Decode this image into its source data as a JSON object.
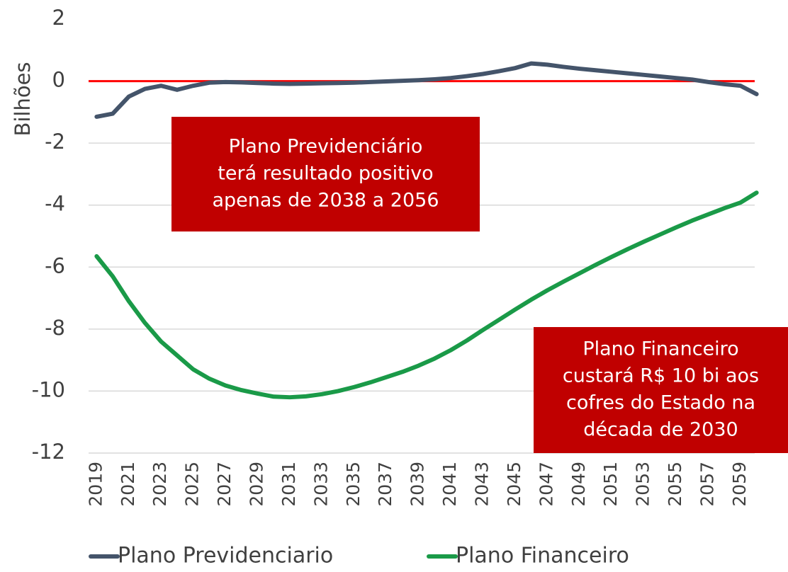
{
  "chart_data": {
    "type": "line",
    "y_label": "Bilhões",
    "x": [
      2019,
      2020,
      2021,
      2022,
      2023,
      2024,
      2025,
      2026,
      2027,
      2028,
      2029,
      2030,
      2031,
      2032,
      2033,
      2034,
      2035,
      2036,
      2037,
      2038,
      2039,
      2040,
      2041,
      2042,
      2043,
      2044,
      2045,
      2046,
      2047,
      2048,
      2049,
      2050,
      2051,
      2052,
      2053,
      2054,
      2055,
      2056,
      2057,
      2058,
      2059,
      2060
    ],
    "xlim": [
      2018.5,
      2060.5
    ],
    "xticks": [
      2019,
      2021,
      2023,
      2025,
      2027,
      2029,
      2031,
      2033,
      2035,
      2037,
      2039,
      2041,
      2043,
      2045,
      2047,
      2049,
      2051,
      2053,
      2055,
      2057,
      2059
    ],
    "ylim": [
      -12,
      2
    ],
    "yticks": [
      -12,
      -10,
      -8,
      -6,
      -4,
      -2,
      0,
      2
    ],
    "grid": true,
    "reference_line": {
      "value": 0,
      "color": "#ff0000"
    },
    "series": [
      {
        "name": "Plano Previdenciario",
        "color": "#44546a",
        "values": [
          -1.15,
          -1.05,
          -0.5,
          -0.25,
          -0.15,
          -0.28,
          -0.15,
          -0.05,
          -0.03,
          -0.04,
          -0.06,
          -0.08,
          -0.09,
          -0.08,
          -0.07,
          -0.06,
          -0.05,
          -0.03,
          -0.01,
          0.01,
          0.03,
          0.06,
          0.1,
          0.16,
          0.23,
          0.32,
          0.42,
          0.57,
          0.53,
          0.46,
          0.4,
          0.35,
          0.3,
          0.25,
          0.2,
          0.15,
          0.1,
          0.05,
          -0.03,
          -0.1,
          -0.15,
          -0.42
        ]
      },
      {
        "name": "Plano Financeiro",
        "color": "#1a9a48",
        "values": [
          -5.65,
          -6.3,
          -7.1,
          -7.8,
          -8.4,
          -8.85,
          -9.3,
          -9.6,
          -9.82,
          -9.97,
          -10.08,
          -10.18,
          -10.2,
          -10.17,
          -10.1,
          -10.0,
          -9.87,
          -9.72,
          -9.55,
          -9.38,
          -9.18,
          -8.95,
          -8.68,
          -8.37,
          -8.03,
          -7.7,
          -7.37,
          -7.05,
          -6.75,
          -6.47,
          -6.2,
          -5.93,
          -5.67,
          -5.42,
          -5.18,
          -4.95,
          -4.72,
          -4.5,
          -4.3,
          -4.1,
          -3.92,
          -3.6
        ]
      }
    ],
    "annotations": [
      {
        "lines": [
          "Plano Previdenciário",
          "terá resultado positivo",
          "apenas de 2038 a 2056"
        ],
        "color": "#c00000"
      },
      {
        "lines": [
          "Plano Financeiro",
          "custará R$ 10 bi aos",
          "cofres do Estado na",
          "década de 2030"
        ],
        "color": "#c00000"
      }
    ]
  }
}
